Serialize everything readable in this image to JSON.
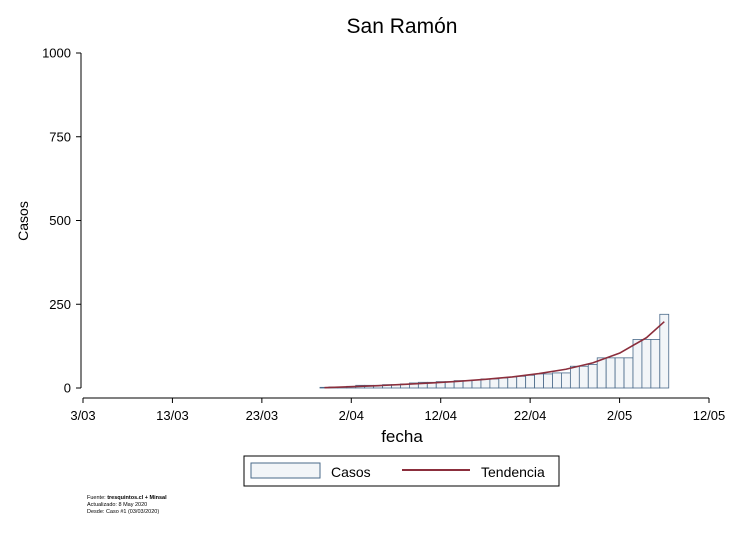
{
  "chart_data": {
    "type": "bar",
    "title": "San Ramón",
    "xlabel": "fecha",
    "ylabel": "Casos",
    "ylim": [
      0,
      1000
    ],
    "yticks": [
      0,
      250,
      500,
      750,
      1000
    ],
    "xticks": [
      "3/03",
      "13/03",
      "23/03",
      "2/04",
      "12/04",
      "22/04",
      "2/05",
      "12/05"
    ],
    "xrange": [
      "2020-03-03",
      "2020-05-12"
    ],
    "grid": false,
    "legend_position": "bottom",
    "series": [
      {
        "name": "Casos",
        "kind": "bar",
        "color": "#f2f5f8",
        "edge_color": "#4a6a8a",
        "x": [
          "2020-03-30",
          "2020-03-31",
          "2020-04-01",
          "2020-04-02",
          "2020-04-03",
          "2020-04-04",
          "2020-04-05",
          "2020-04-06",
          "2020-04-07",
          "2020-04-08",
          "2020-04-09",
          "2020-04-10",
          "2020-04-11",
          "2020-04-12",
          "2020-04-13",
          "2020-04-14",
          "2020-04-15",
          "2020-04-16",
          "2020-04-17",
          "2020-04-18",
          "2020-04-19",
          "2020-04-20",
          "2020-04-21",
          "2020-04-22",
          "2020-04-23",
          "2020-04-24",
          "2020-04-25",
          "2020-04-26",
          "2020-04-27",
          "2020-04-28",
          "2020-04-29",
          "2020-04-30",
          "2020-05-01",
          "2020-05-02",
          "2020-05-03",
          "2020-05-04",
          "2020-05-05",
          "2020-05-06",
          "2020-05-07"
        ],
        "values": [
          2,
          3,
          3,
          5,
          8,
          8,
          8,
          10,
          10,
          12,
          15,
          17,
          17,
          19,
          19,
          22,
          22,
          24,
          27,
          27,
          30,
          33,
          35,
          38,
          42,
          42,
          45,
          45,
          65,
          65,
          70,
          90,
          90,
          90,
          90,
          145,
          145,
          145,
          220
        ]
      },
      {
        "name": "Tendencia",
        "kind": "line",
        "color": "#8b2e3c",
        "x": [
          "2020-03-30",
          "2020-04-02",
          "2020-04-05",
          "2020-04-08",
          "2020-04-11",
          "2020-04-14",
          "2020-04-17",
          "2020-04-20",
          "2020-04-23",
          "2020-04-26",
          "2020-04-29",
          "2020-05-02",
          "2020-05-05",
          "2020-05-07"
        ],
        "values": [
          1,
          4,
          7,
          11,
          15,
          20,
          26,
          33,
          43,
          56,
          75,
          104,
          150,
          198
        ]
      }
    ],
    "source": {
      "line1_prefix": "Fuente: ",
      "line1_bold": "tresquintos.cl + Minsal",
      "line2": "Actualizado: 8 May 2020",
      "line3": "Desde: Caso #1  (03/03/2020)"
    }
  }
}
